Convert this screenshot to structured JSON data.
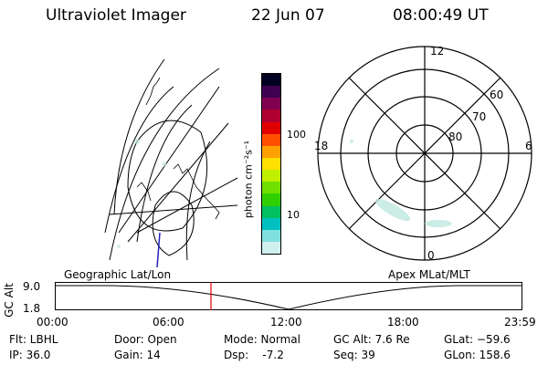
{
  "header": {
    "instrument": "Ultraviolet Imager",
    "date": "22 Jun 07",
    "time": "08:00:49 UT"
  },
  "left_panel": {
    "label": "Geographic Lat/Lon"
  },
  "right_panel": {
    "label": "Apex MLat/MLT",
    "mlt_labels": [
      "12",
      "18",
      "6",
      "0"
    ],
    "lat_labels": [
      "60",
      "70",
      "80"
    ]
  },
  "colorbar": {
    "unit_label": "photon cm⁻²s⁻¹",
    "ticks": [
      "100",
      "10"
    ],
    "colors": [
      "#000020",
      "#400050",
      "#800050",
      "#b00030",
      "#e00000",
      "#ff5000",
      "#ffa000",
      "#ffe000",
      "#c0f000",
      "#70e000",
      "#30d000",
      "#00c060",
      "#00c0c0",
      "#80e0e0",
      "#d0f0f0"
    ]
  },
  "altitude_plot": {
    "y_label": "GC Alt",
    "y_ticks": [
      "9.0",
      "1.8"
    ],
    "x_ticks": [
      "00:00",
      "06:00",
      "12:00",
      "18:00",
      "23:59"
    ],
    "current_time_fraction": 0.334,
    "marker_color": "#e00000"
  },
  "status": {
    "flt": "Flt: LBHL",
    "ip": "IP: 36.0",
    "door": "Door: Open",
    "gain": "Gain: 14",
    "mode": "Mode: Normal",
    "dsp": "Dsp:    -7.2",
    "gc_alt": "GC Alt: 7.6 Re",
    "seq": "Seq: 39",
    "glat": "GLat: −59.6",
    "glon": "GLon: 158.6"
  }
}
